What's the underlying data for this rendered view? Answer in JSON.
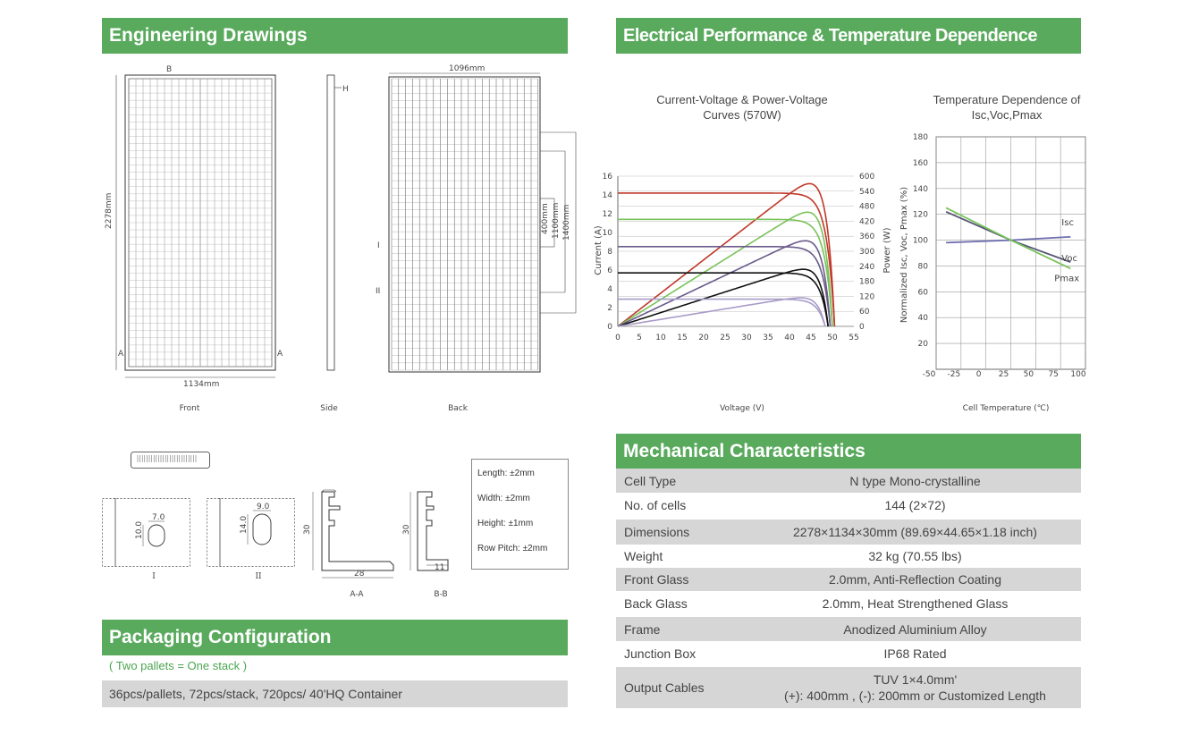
{
  "engineering": {
    "title": "Engineering Drawings",
    "views": [
      "Front",
      "Side",
      "Back"
    ],
    "dims": {
      "length": "2278mm",
      "width_front": "1134mm",
      "width_back": "1096mm",
      "d1": "400mm",
      "d2": "1100mm",
      "d3": "1400mm"
    },
    "markers": {
      "b": "B",
      "h": "H",
      "a": "A",
      "i": "I",
      "ii": "II"
    },
    "details": [
      "I",
      "II",
      "A-A",
      "B-B"
    ],
    "detail_values": {
      "i_w": "7.0",
      "i_h": "10.0",
      "ii_w": "9.0",
      "ii_h": "14.0",
      "aa_h": "30",
      "aa_w": "28",
      "bb_h": "30",
      "bb_w": "11"
    },
    "tolerances": [
      "Length: ±2mm",
      "Width: ±2mm",
      "Height: ±1mm",
      "Row Pitch: ±2mm"
    ]
  },
  "electrical": {
    "title": "Electrical Performance & Temperature Dependence",
    "iv_title_l1": "Current-Voltage & Power-Voltage",
    "iv_title_l2": "Curves (570W)",
    "iv_xlabel": "Voltage (V)",
    "iv_ylabel_left": "Current (A)",
    "iv_ylabel_right": "Power (W)",
    "temp_title_l1": "Temperature Dependence of",
    "temp_title_l2": "Isc,Voc,Pmax",
    "temp_xlabel": "Cell Temperature (℃)",
    "temp_ylabel": "Normalized Isc, Voc, Pmax (%)"
  },
  "chart_data": [
    {
      "type": "line",
      "title": "Current-Voltage & Power-Voltage Curves (570W)",
      "xlabel": "Voltage (V)",
      "ylabel": "Current (A)",
      "y2label": "Power (W)",
      "xlim": [
        0,
        55
      ],
      "ylim": [
        0,
        16
      ],
      "y2lim": [
        0,
        600
      ],
      "xticks": [
        0,
        5,
        10,
        15,
        20,
        25,
        30,
        35,
        40,
        45,
        50,
        55
      ],
      "yticks": [
        0,
        2,
        4,
        6,
        8,
        10,
        12,
        14,
        16
      ],
      "y2ticks": [
        0,
        60,
        120,
        180,
        240,
        300,
        360,
        420,
        480,
        540,
        600
      ],
      "series": [
        {
          "color": "#c0392b",
          "isc": 14.2,
          "voc": 50.5,
          "pmax": 570
        },
        {
          "color": "#7ac25a",
          "isc": 11.4,
          "voc": 50.0,
          "pmax": 456
        },
        {
          "color": "#6a5a8a",
          "isc": 8.5,
          "voc": 49.5,
          "pmax": 342
        },
        {
          "color": "#111111",
          "isc": 5.7,
          "voc": 49.0,
          "pmax": 228
        },
        {
          "color": "#a89cc8",
          "isc": 2.9,
          "voc": 48.3,
          "pmax": 114
        }
      ]
    },
    {
      "type": "line",
      "title": "Temperature Dependence of Isc,Voc,Pmax",
      "xlabel": "Cell Temperature (℃)",
      "ylabel": "Normalized Isc, Voc, Pmax (%)",
      "xlim": [
        -50,
        100
      ],
      "ylim": [
        0,
        180
      ],
      "xticks": [
        -50,
        -25,
        0,
        25,
        50,
        75,
        100
      ],
      "yticks": [
        20,
        40,
        60,
        80,
        100,
        120,
        140,
        160,
        180
      ],
      "series": [
        {
          "name": "Isc",
          "color": "#6b6bb0",
          "x": [
            -40,
            25,
            85
          ],
          "y": [
            98,
            100,
            102.5
          ]
        },
        {
          "name": "Voc",
          "color": "#555577",
          "x": [
            -40,
            25,
            85
          ],
          "y": [
            122,
            100,
            83
          ]
        },
        {
          "name": "Pmax",
          "color": "#7ac25a",
          "x": [
            -40,
            25,
            85
          ],
          "y": [
            125,
            100,
            78
          ]
        }
      ]
    }
  ],
  "packaging": {
    "title": "Packaging Configuration",
    "note": "( Two pallets = One stack )",
    "detail": "36pcs/pallets, 72pcs/stack, 720pcs/ 40'HQ Container"
  },
  "mechanical": {
    "title": "Mechanical Characteristics",
    "rows": [
      {
        "k": "Cell  Type",
        "v": "N type Mono-crystalline"
      },
      {
        "k": "No. of cells",
        "v": "144 (2×72)"
      },
      {
        "k": "Dimensions",
        "v": "2278×1134×30mm (89.69×44.65×1.18 inch)"
      },
      {
        "k": "Weight",
        "v": "32 kg (70.55 lbs)"
      },
      {
        "k": "Front Glass",
        "v": "2.0mm, Anti-Reflection Coating"
      },
      {
        "k": "Back Glass",
        "v": "2.0mm, Heat Strengthened Glass"
      },
      {
        "k": "Frame",
        "v": "Anodized Aluminium Alloy"
      },
      {
        "k": "Junction Box",
        "v": "IP68 Rated"
      },
      {
        "k": "Output Cables",
        "v": "TUV  1×4.0mm'",
        "v2": "(+): 400mm , (-): 200mm or Customized Length"
      }
    ]
  }
}
